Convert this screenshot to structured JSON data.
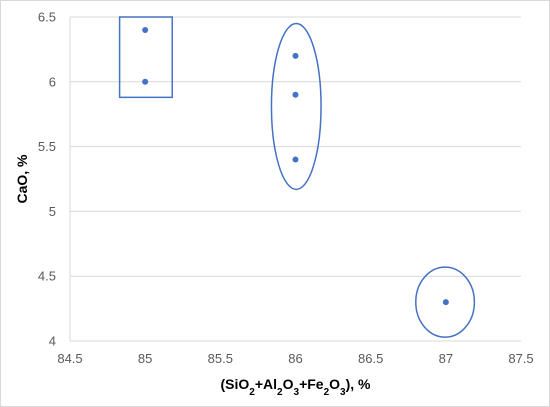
{
  "chart_data": {
    "type": "scatter",
    "title": "",
    "xlabel_parts": [
      {
        "t": "(SiO",
        "sub": false
      },
      {
        "t": "2",
        "sub": true
      },
      {
        "t": "+Al",
        "sub": false
      },
      {
        "t": "2",
        "sub": true
      },
      {
        "t": "O",
        "sub": false
      },
      {
        "t": "3",
        "sub": true
      },
      {
        "t": "+Fe",
        "sub": false
      },
      {
        "t": "2",
        "sub": true
      },
      {
        "t": "O",
        "sub": false
      },
      {
        "t": "3",
        "sub": true
      },
      {
        "t": "), %",
        "sub": false
      }
    ],
    "ylabel": "CaO, %",
    "xlim": [
      84.5,
      87.5
    ],
    "ylim": [
      4,
      6.5
    ],
    "xticks": [
      84.5,
      85,
      85.5,
      86,
      86.5,
      87,
      87.5
    ],
    "yticks": [
      4,
      4.5,
      5,
      5.5,
      6,
      6.5
    ],
    "xtick_labels": [
      "84.5",
      "85",
      "85.5",
      "86",
      "86.5",
      "87",
      "87.5"
    ],
    "ytick_labels": [
      "4",
      "4.5",
      "5",
      "5.5",
      "6",
      "6.5"
    ],
    "grid": "horizontal",
    "legend": "none",
    "points": [
      {
        "x": 85,
        "y": 6.4
      },
      {
        "x": 85,
        "y": 6.0
      },
      {
        "x": 86,
        "y": 6.2
      },
      {
        "x": 86,
        "y": 5.9
      },
      {
        "x": 86,
        "y": 5.4
      },
      {
        "x": 87,
        "y": 4.3
      }
    ],
    "groupings": [
      {
        "shape": "rectangle",
        "x_range": [
          84.83,
          85.18
        ],
        "y_range": [
          5.88,
          6.5
        ]
      },
      {
        "shape": "ellipse",
        "x_range": [
          85.84,
          86.17
        ],
        "y_range": [
          5.17,
          6.45
        ]
      },
      {
        "shape": "ellipse",
        "x_range": [
          86.8,
          87.19
        ],
        "y_range": [
          4.03,
          4.57
        ]
      }
    ],
    "colors": {
      "marker": "#4472c4",
      "grouping": "#4472c4",
      "grid": "#d9d9d9",
      "tick_text": "#595959"
    }
  }
}
